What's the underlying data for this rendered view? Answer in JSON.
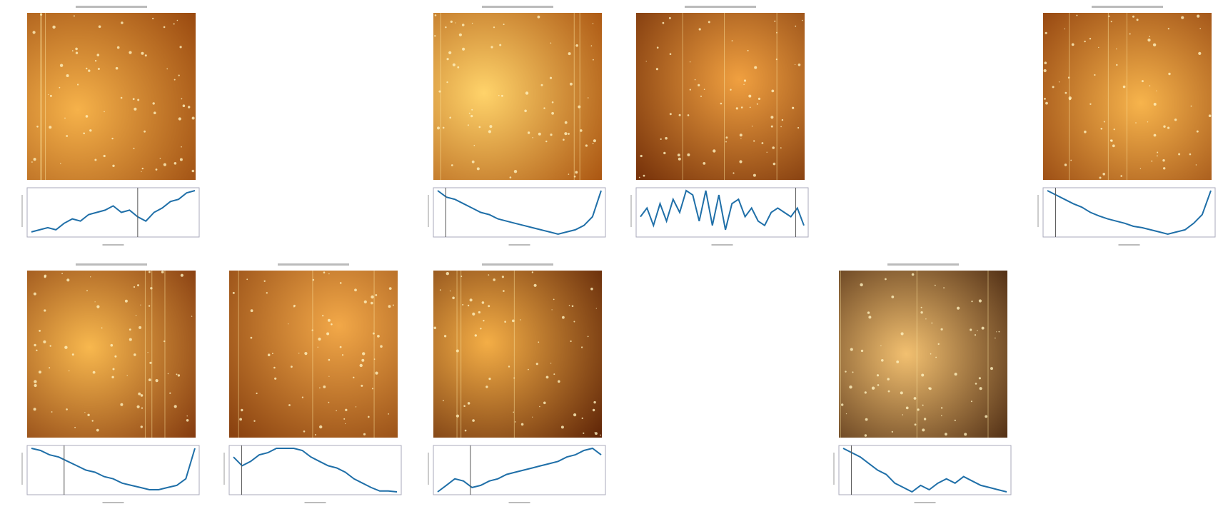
{
  "panels": [
    {
      "profile": [
        0.05,
        0.1,
        0.15,
        0.1,
        0.25,
        0.35,
        0.3,
        0.45,
        0.5,
        0.55,
        0.65,
        0.5,
        0.55,
        0.4,
        0.3,
        0.5,
        0.6,
        0.75,
        0.8,
        0.95,
        1.0
      ],
      "marker": 0.65,
      "ylim": [
        0,
        1
      ]
    },
    {
      "profile": [
        1,
        0.85,
        0.8,
        0.7,
        0.6,
        0.5,
        0.45,
        0.35,
        0.3,
        0.25,
        0.2,
        0.15,
        0.1,
        0.05,
        0.0,
        0.05,
        0.1,
        0.2,
        0.4,
        1.0
      ],
      "marker": 0.05,
      "ylim": [
        0,
        1
      ]
    },
    {
      "profile": [
        0.4,
        0.6,
        0.2,
        0.7,
        0.3,
        0.8,
        0.5,
        1,
        0.9,
        0.3,
        1,
        0.2,
        0.9,
        0.1,
        0.7,
        0.8,
        0.4,
        0.6,
        0.3,
        0.2,
        0.5,
        0.6,
        0.5,
        0.4,
        0.6,
        0.2
      ],
      "marker": 0.95,
      "ylim": [
        0,
        1
      ]
    },
    {
      "profile": [
        1,
        0.9,
        0.8,
        0.7,
        0.62,
        0.5,
        0.42,
        0.35,
        0.3,
        0.25,
        0.18,
        0.15,
        0.1,
        0.05,
        0.0,
        0.05,
        0.1,
        0.25,
        0.45,
        1.0
      ],
      "marker": 0.05,
      "ylim": [
        0,
        1
      ]
    },
    {
      "profile": [
        1,
        0.95,
        0.85,
        0.8,
        0.7,
        0.6,
        0.5,
        0.45,
        0.35,
        0.3,
        0.2,
        0.15,
        0.1,
        0.05,
        0.05,
        0.1,
        0.15,
        0.3,
        1.0
      ],
      "marker": 0.2,
      "ylim": [
        0,
        1
      ]
    },
    {
      "profile": [
        0.8,
        0.6,
        0.7,
        0.85,
        0.9,
        1,
        1,
        1,
        0.95,
        0.8,
        0.7,
        0.6,
        0.55,
        0.45,
        0.3,
        0.2,
        0.1,
        0.02,
        0.02,
        0.0
      ],
      "marker": 0.05,
      "ylim": [
        0,
        1
      ]
    },
    {
      "profile": [
        0,
        0.15,
        0.3,
        0.25,
        0.1,
        0.15,
        0.25,
        0.3,
        0.4,
        0.45,
        0.5,
        0.55,
        0.6,
        0.65,
        0.7,
        0.8,
        0.85,
        0.95,
        1,
        0.85
      ],
      "marker": 0.2,
      "ylim": [
        0,
        1
      ]
    },
    {
      "profile": [
        1,
        0.9,
        0.8,
        0.65,
        0.5,
        0.4,
        0.2,
        0.1,
        0.0,
        0.15,
        0.05,
        0.2,
        0.3,
        0.2,
        0.35,
        0.25,
        0.15,
        0.1,
        0.05,
        0.0
      ],
      "marker": 0.05,
      "ylim": [
        0,
        1
      ]
    }
  ]
}
